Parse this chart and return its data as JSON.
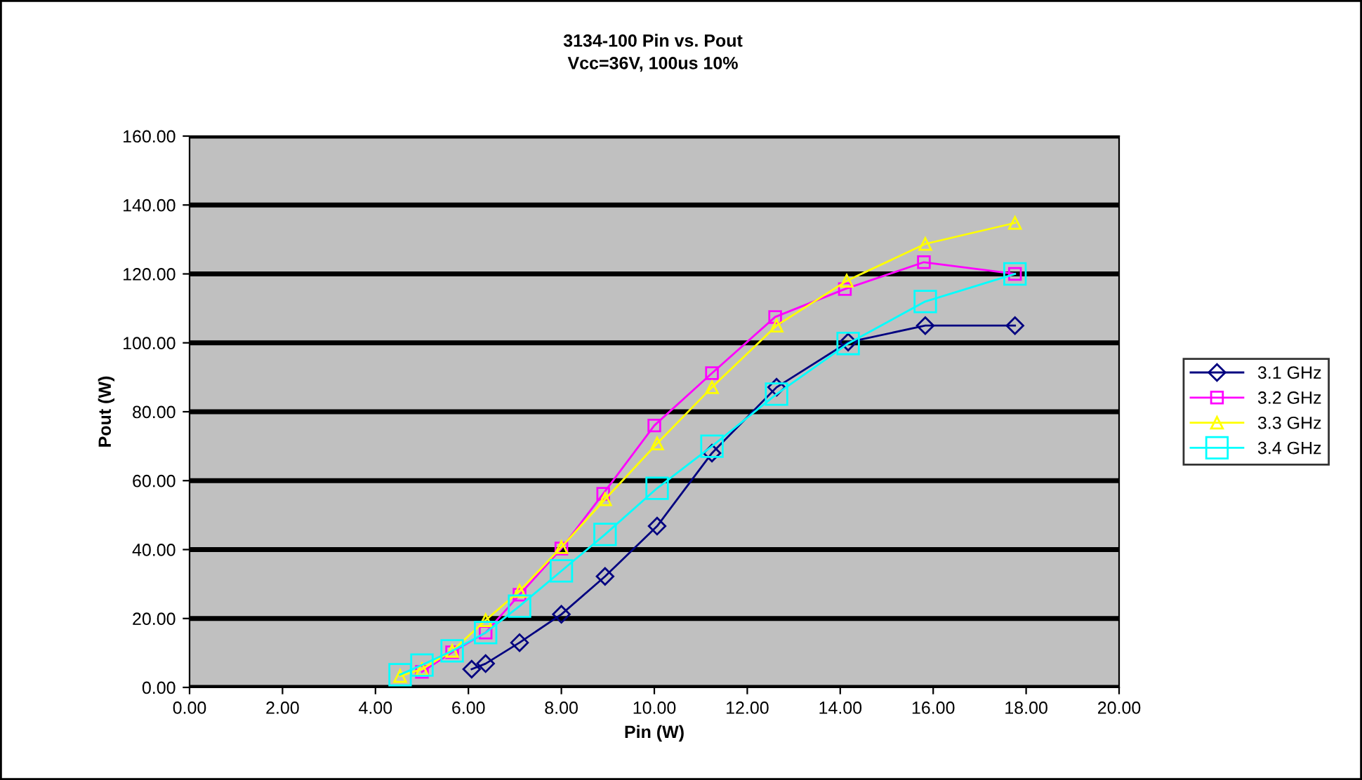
{
  "chart_data": {
    "type": "line",
    "title": "3134-100 Pin vs. Pout",
    "subtitle": "Vcc=36V, 100us 10%",
    "xlabel": "Pin (W)",
    "ylabel": "Pout (W)",
    "xlim": [
      0,
      20
    ],
    "ylim": [
      0,
      160
    ],
    "xticks": [
      {
        "value": 0,
        "label": "0.00"
      },
      {
        "value": 2,
        "label": "2.00"
      },
      {
        "value": 4,
        "label": "4.00"
      },
      {
        "value": 6,
        "label": "6.00"
      },
      {
        "value": 8,
        "label": "8.00"
      },
      {
        "value": 10,
        "label": "10.00"
      },
      {
        "value": 12,
        "label": "12.00"
      },
      {
        "value": 14,
        "label": "14.00"
      },
      {
        "value": 16,
        "label": "16.00"
      },
      {
        "value": 18,
        "label": "18.00"
      },
      {
        "value": 20,
        "label": "20.00"
      }
    ],
    "yticks": [
      {
        "value": 0,
        "label": "0.00"
      },
      {
        "value": 20,
        "label": "20.00"
      },
      {
        "value": 40,
        "label": "40.00"
      },
      {
        "value": 60,
        "label": "60.00"
      },
      {
        "value": 80,
        "label": "80.00"
      },
      {
        "value": 100,
        "label": "100.00"
      },
      {
        "value": 120,
        "label": "120.00"
      },
      {
        "value": 140,
        "label": "140.00"
      },
      {
        "value": 160,
        "label": "160.00"
      }
    ],
    "grid": "y",
    "legend": "right",
    "line_style": "solid",
    "series": [
      {
        "name": "3.1 GHz",
        "color": "#000080",
        "marker": "diamond",
        "x": [
          6.07,
          6.37,
          7.1,
          8.0,
          8.94,
          10.06,
          11.24,
          12.63,
          14.17,
          15.83,
          17.76
        ],
        "values": [
          5.3,
          6.9,
          13,
          21.2,
          32.2,
          46.8,
          68,
          87.1,
          100.2,
          105,
          105
        ]
      },
      {
        "name": "3.2 GHz",
        "color": "#ff00ff",
        "marker": "square",
        "x": [
          5.0,
          5.65,
          6.37,
          7.1,
          8.0,
          8.9,
          10.0,
          11.24,
          12.6,
          14.1,
          15.8,
          17.76
        ],
        "values": [
          4.5,
          10.2,
          15.9,
          26.9,
          40.3,
          56.2,
          76,
          91.2,
          107.5,
          115.6,
          123.4,
          120
        ]
      },
      {
        "name": "3.3 GHz",
        "color": "#ffff00",
        "marker": "triangle",
        "x": [
          4.53,
          5.0,
          5.65,
          6.37,
          7.1,
          8.0,
          8.94,
          10.06,
          11.24,
          12.63,
          14.14,
          15.83,
          17.76
        ],
        "values": [
          3.3,
          5.3,
          10.6,
          19.5,
          28,
          40.7,
          54.6,
          70.8,
          87.1,
          105,
          118,
          128.7,
          134.8
        ]
      },
      {
        "name": "3.4 GHz",
        "color": "#00ffff",
        "marker": "square",
        "x": [
          4.53,
          5.0,
          5.65,
          6.37,
          7.1,
          8.0,
          8.94,
          10.06,
          11.24,
          12.63,
          14.17,
          15.83,
          17.76
        ],
        "values": [
          3.7,
          6.5,
          10.6,
          15.9,
          23.6,
          33.8,
          44.4,
          57.8,
          70,
          85.1,
          99.8,
          112,
          120
        ]
      }
    ]
  }
}
